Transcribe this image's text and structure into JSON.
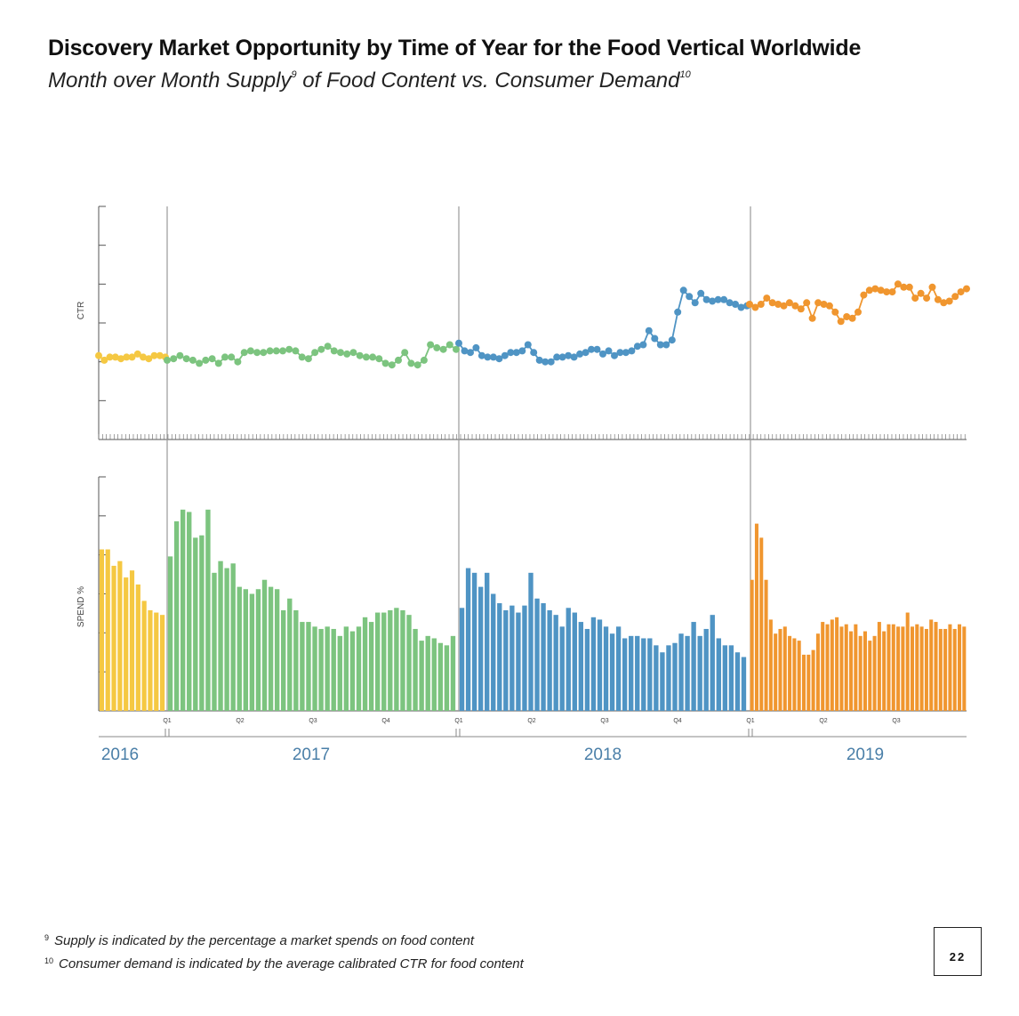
{
  "title": "Discovery Market Opportunity by Time of Year for the Food Vertical Worldwide",
  "subtitle": {
    "text_a": "Month over Month Supply",
    "sup_a": "9",
    "text_b": " of Food Content vs. Consumer Demand",
    "sup_b": "10"
  },
  "footnotes": [
    {
      "mark": "9",
      "text": "Supply is indicated by the percentage a market spends on food content"
    },
    {
      "mark": "10",
      "text": "Consumer demand is indicated by the average calibrated CTR for food content"
    }
  ],
  "page_number": "22",
  "chart_data": {
    "type": "line+bar",
    "top_panel": {
      "type": "line",
      "ylabel": "CTR"
    },
    "bottom_panel": {
      "type": "bar",
      "ylabel": "SPEND %"
    },
    "years": [
      "2016",
      "2017",
      "2018",
      "2019"
    ],
    "quarter_labels": [
      "Q1",
      "Q2",
      "Q3",
      "Q4",
      "Q1",
      "Q2",
      "Q3",
      "Q4",
      "Q1",
      "Q2",
      "Q3"
    ],
    "colors": {
      "2016": "#f5c842",
      "2017": "#7cc47f",
      "2018": "#4f94c4",
      "2019": "#f0962f"
    },
    "series": [
      {
        "year": "2016",
        "ctr": [
          5.4,
          5.1,
          5.3,
          5.3,
          5.2,
          5.3,
          5.3,
          5.5,
          5.3,
          5.2,
          5.4,
          5.4,
          5.3
        ],
        "spend": [
          6.9,
          6.9,
          6.2,
          6.4,
          5.7,
          6.0,
          5.4,
          4.7,
          4.3,
          4.2,
          4.1
        ]
      },
      {
        "year": "2017",
        "ctr": [
          5.1,
          5.2,
          5.4,
          5.2,
          5.1,
          4.9,
          5.1,
          5.2,
          4.9,
          5.3,
          5.3,
          5.0,
          5.6,
          5.7,
          5.6,
          5.6,
          5.7,
          5.7,
          5.7,
          5.8,
          5.7,
          5.3,
          5.2,
          5.6,
          5.8,
          6.0,
          5.7,
          5.6,
          5.5,
          5.6,
          5.4,
          5.3,
          5.3,
          5.2,
          4.9,
          4.8,
          5.1,
          5.6,
          4.9,
          4.8,
          5.1,
          6.1,
          5.9,
          5.8,
          6.1,
          5.8
        ],
        "spend": [
          6.6,
          8.1,
          8.6,
          8.5,
          7.4,
          7.5,
          8.6,
          5.9,
          6.4,
          6.1,
          6.3,
          5.3,
          5.2,
          5.0,
          5.2,
          5.6,
          5.3,
          5.2,
          4.3,
          4.8,
          4.3,
          3.8,
          3.8,
          3.6,
          3.5,
          3.6,
          3.5,
          3.2,
          3.6,
          3.4,
          3.6,
          4.0,
          3.8,
          4.2,
          4.2,
          4.3,
          4.4,
          4.3,
          4.1,
          3.5,
          3.0,
          3.2,
          3.1,
          2.9,
          2.8,
          3.2
        ]
      },
      {
        "year": "2018",
        "ctr": [
          6.2,
          5.7,
          5.6,
          5.9,
          5.4,
          5.3,
          5.3,
          5.2,
          5.4,
          5.6,
          5.6,
          5.7,
          6.1,
          5.6,
          5.1,
          5.0,
          5.0,
          5.3,
          5.3,
          5.4,
          5.3,
          5.5,
          5.6,
          5.8,
          5.8,
          5.5,
          5.7,
          5.4,
          5.6,
          5.6,
          5.7,
          6.0,
          6.1,
          7.0,
          6.5,
          6.1,
          6.1,
          6.4,
          8.2,
          9.6,
          9.2,
          8.8,
          9.4,
          9.0,
          8.9,
          9.0,
          9.0,
          8.8,
          8.7,
          8.5,
          8.6
        ],
        "spend": [
          4.4,
          6.1,
          5.9,
          5.3,
          5.9,
          5.0,
          4.6,
          4.3,
          4.5,
          4.2,
          4.5,
          5.9,
          4.8,
          4.6,
          4.3,
          4.1,
          3.6,
          4.4,
          4.2,
          3.8,
          3.5,
          4.0,
          3.9,
          3.6,
          3.3,
          3.6,
          3.1,
          3.2,
          3.2,
          3.1,
          3.1,
          2.8,
          2.5,
          2.8,
          2.9,
          3.3,
          3.2,
          3.8,
          3.2,
          3.5,
          4.1,
          3.1,
          2.8,
          2.8,
          2.5,
          2.3
        ]
      },
      {
        "year": "2019",
        "ctr": [
          8.7,
          8.5,
          8.7,
          9.1,
          8.8,
          8.7,
          8.6,
          8.8,
          8.6,
          8.4,
          8.8,
          7.8,
          8.8,
          8.7,
          8.6,
          8.2,
          7.6,
          7.9,
          7.8,
          8.2,
          9.3,
          9.6,
          9.7,
          9.6,
          9.5,
          9.5,
          10.0,
          9.8,
          9.8,
          9.1,
          9.4,
          9.1,
          9.8,
          9.0,
          8.8,
          8.9,
          9.2,
          9.5,
          9.7
        ],
        "spend": [
          5.6,
          8.0,
          7.4,
          5.6,
          3.9,
          3.3,
          3.5,
          3.6,
          3.2,
          3.1,
          3.0,
          2.4,
          2.4,
          2.6,
          3.3,
          3.8,
          3.7,
          3.9,
          4.0,
          3.6,
          3.7,
          3.4,
          3.7,
          3.2,
          3.4,
          3.0,
          3.2,
          3.8,
          3.4,
          3.7,
          3.7,
          3.6,
          3.6,
          4.2,
          3.6,
          3.7,
          3.6,
          3.5,
          3.9,
          3.8,
          3.5,
          3.5,
          3.7,
          3.5,
          3.7,
          3.6
        ]
      }
    ]
  }
}
